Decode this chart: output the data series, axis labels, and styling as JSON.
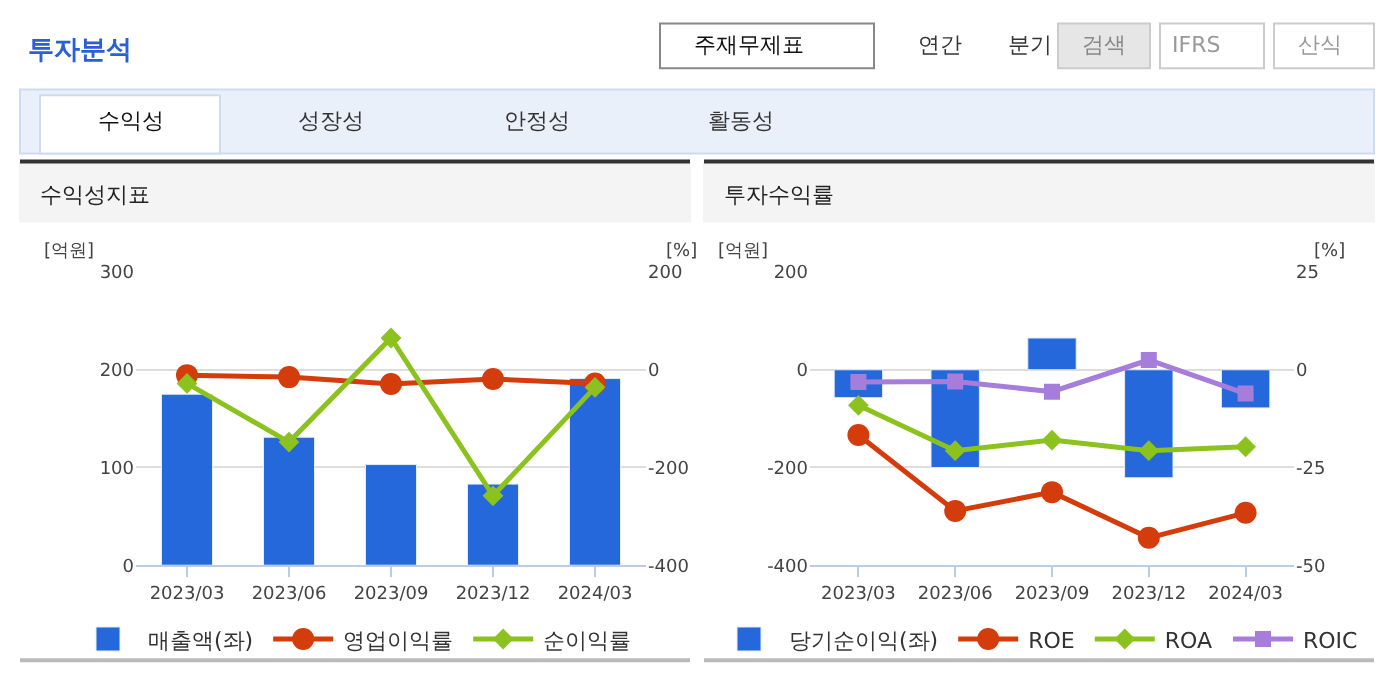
{
  "chart_data": [
    {
      "type": "other",
      "title": "투자분석",
      "annotations": [
        "주재무제표",
        "연간",
        "분기",
        "검색",
        "IFRS",
        "산식",
        "수익성",
        "성장성",
        "안정성",
        "활동성"
      ]
    },
    {
      "type": "bar",
      "title": "수익성지표",
      "ylabel": "[억원]",
      "y2label": "[%]",
      "categories": [
        "2023/03",
        "2023/06",
        "2023/09",
        "2023/12",
        "2024/03"
      ],
      "ylim": [
        0,
        300
      ],
      "yticks": [
        0,
        100,
        200,
        300
      ],
      "y2lim": [
        -400,
        200
      ],
      "y2ticks": [
        -400,
        -200,
        0,
        200
      ],
      "grid": "y",
      "legend": "bottom",
      "series": [
        {
          "name": "매출액(좌)",
          "type": "bar",
          "color": "#2468dc",
          "values": [
            175,
            131,
            103,
            83,
            191
          ]
        },
        {
          "name": "영업이익률",
          "type": "line",
          "axis": "y2",
          "color": "#d43c0c",
          "marker": "circle",
          "values": [
            -11,
            -15,
            -29,
            -19,
            -28
          ]
        },
        {
          "name": "순이익률",
          "type": "line",
          "axis": "y2",
          "color": "#8cc21e",
          "marker": "diamond",
          "values": [
            -28,
            -148,
            65,
            -258,
            -36
          ]
        }
      ]
    },
    {
      "type": "bar",
      "title": "투자수익률",
      "ylabel": "[억원]",
      "y2label": "[%]",
      "categories": [
        "2023/03",
        "2023/06",
        "2023/09",
        "2023/12",
        "2024/03"
      ],
      "ylim": [
        -400,
        200
      ],
      "yticks": [
        -400,
        -200,
        0,
        200
      ],
      "y2lim": [
        -50,
        25
      ],
      "y2ticks": [
        -50,
        -25,
        0,
        25
      ],
      "grid": "y",
      "legend": "bottom",
      "series": [
        {
          "name": "당기순이익(좌)",
          "type": "bar",
          "color": "#2468dc",
          "values": [
            -57,
            -200,
            65,
            -221,
            -78
          ]
        },
        {
          "name": "ROE",
          "type": "line",
          "axis": "y2",
          "color": "#d43c0c",
          "marker": "circle",
          "values": [
            -16.7,
            -36.1,
            -31.3,
            -43.0,
            -36.6
          ]
        },
        {
          "name": "ROA",
          "type": "line",
          "axis": "y2",
          "color": "#8cc21e",
          "marker": "diamond",
          "values": [
            -9.1,
            -20.7,
            -18.0,
            -20.7,
            -19.7
          ]
        },
        {
          "name": "ROIC",
          "type": "line",
          "axis": "y2",
          "color": "#a77ddb",
          "marker": "square",
          "values": [
            -3.1,
            -3.0,
            -5.6,
            2.5,
            -6.1
          ]
        }
      ]
    }
  ]
}
